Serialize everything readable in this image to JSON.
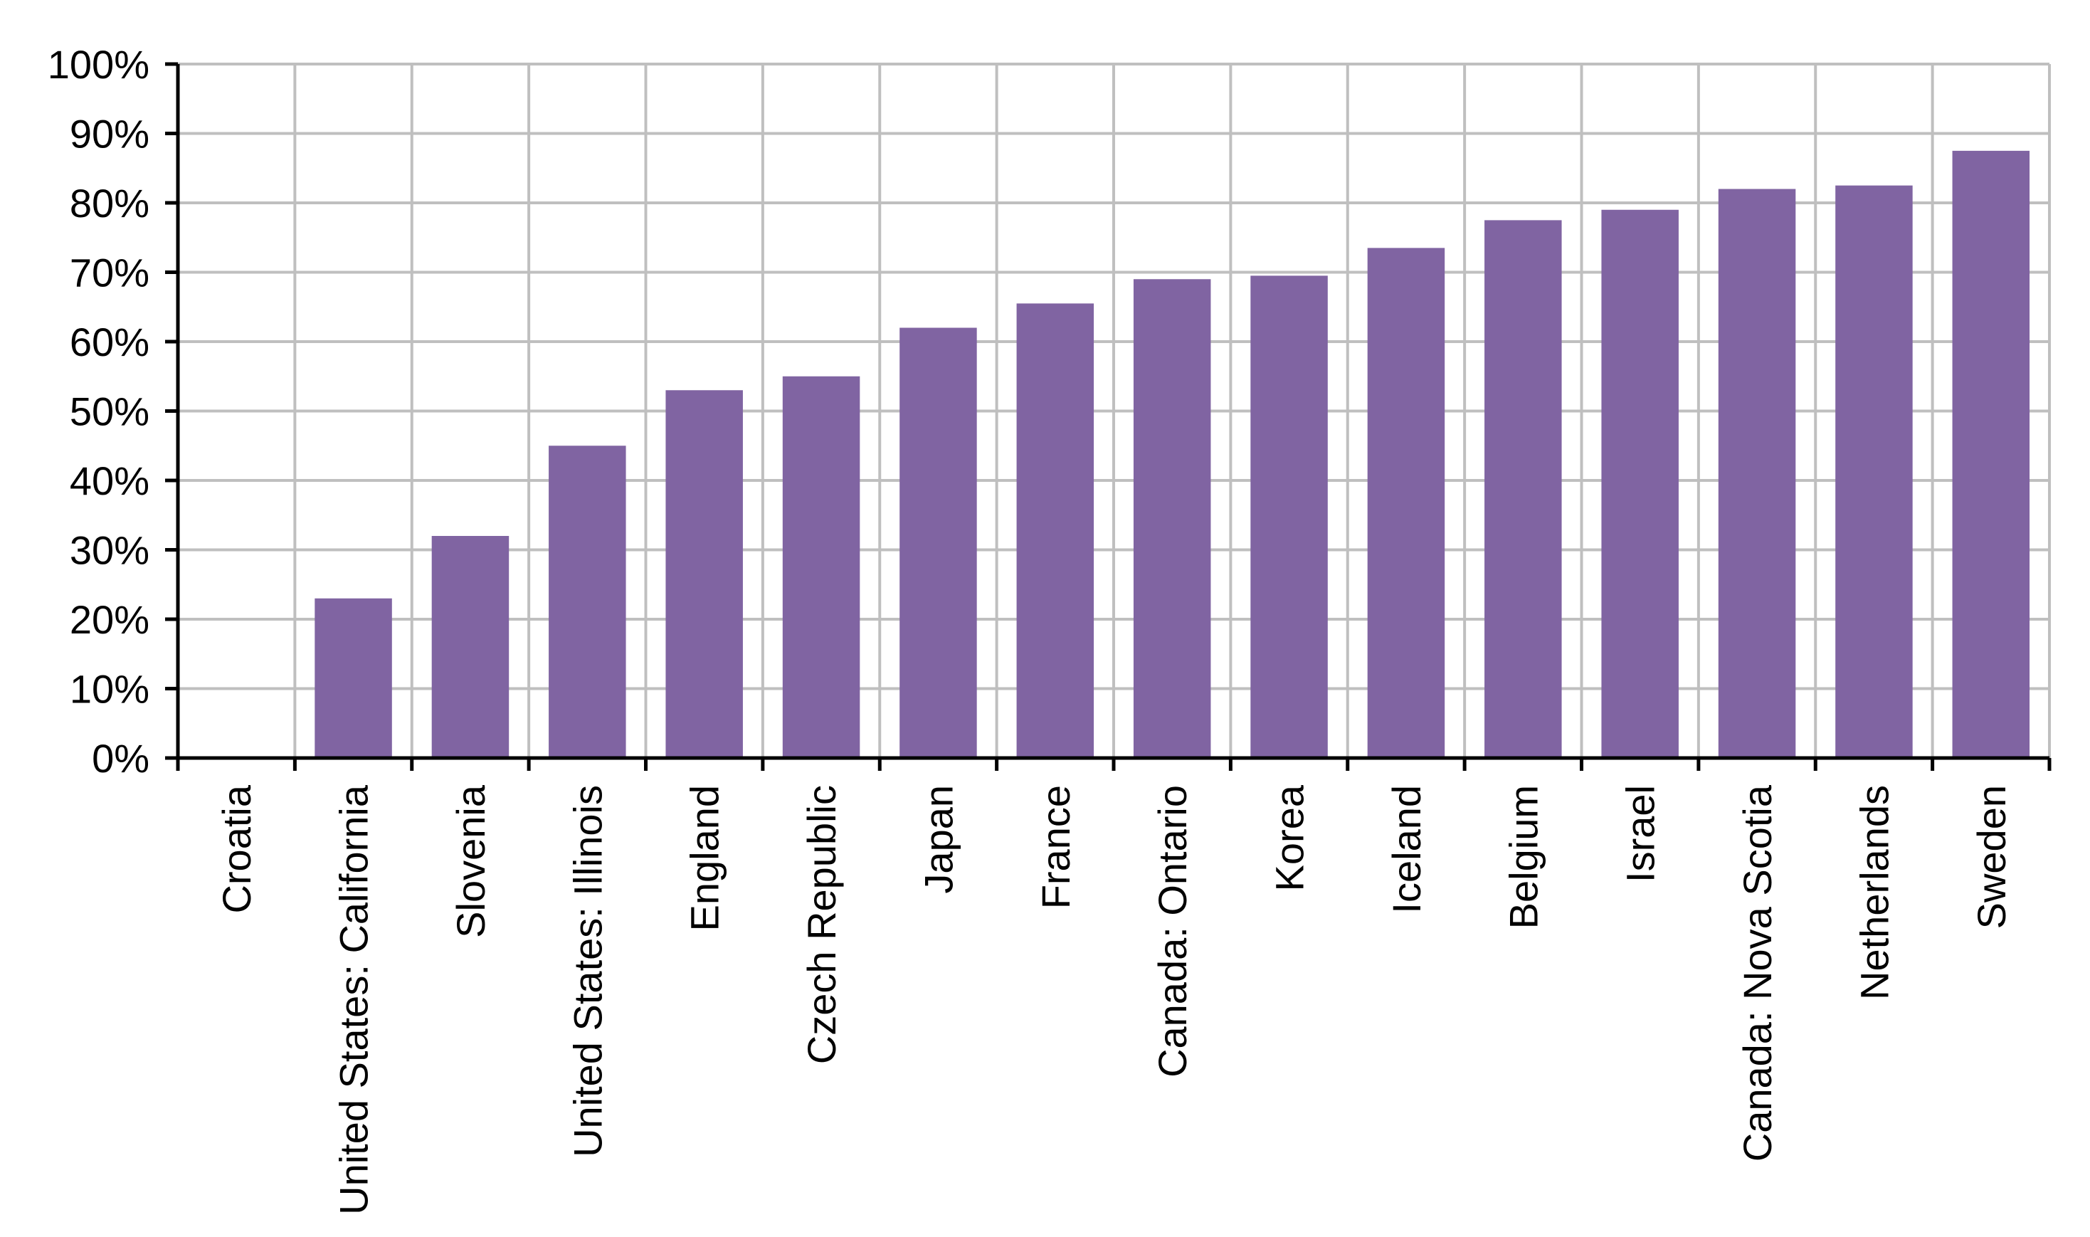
{
  "chart_data": {
    "type": "bar",
    "title": "",
    "xlabel": "",
    "ylabel": "",
    "categories": [
      "Croatia",
      "United States: California",
      "Slovenia",
      "United States: Illinois",
      "England",
      "Czech Republic",
      "Japan",
      "France",
      "Canada: Ontario",
      "Korea",
      "Iceland",
      "Belgium",
      "Israel",
      "Canada: Nova Scotia",
      "Netherlands",
      "Sweden"
    ],
    "values": [
      0,
      23,
      32,
      45,
      53,
      55,
      62,
      65.5,
      69,
      69.5,
      73.5,
      77.5,
      79,
      82,
      82.5,
      87.5
    ],
    "ylim": [
      0,
      100
    ],
    "y_ticks": [
      0,
      10,
      20,
      30,
      40,
      50,
      60,
      70,
      80,
      90,
      100
    ],
    "y_tick_labels": [
      "0%",
      "10%",
      "20%",
      "30%",
      "40%",
      "50%",
      "60%",
      "70%",
      "80%",
      "90%",
      "100%"
    ],
    "grid": true,
    "legend": "none",
    "bar_color": "#8064A2",
    "grid_color": "#BFBFBF",
    "axis_color": "#000000"
  }
}
